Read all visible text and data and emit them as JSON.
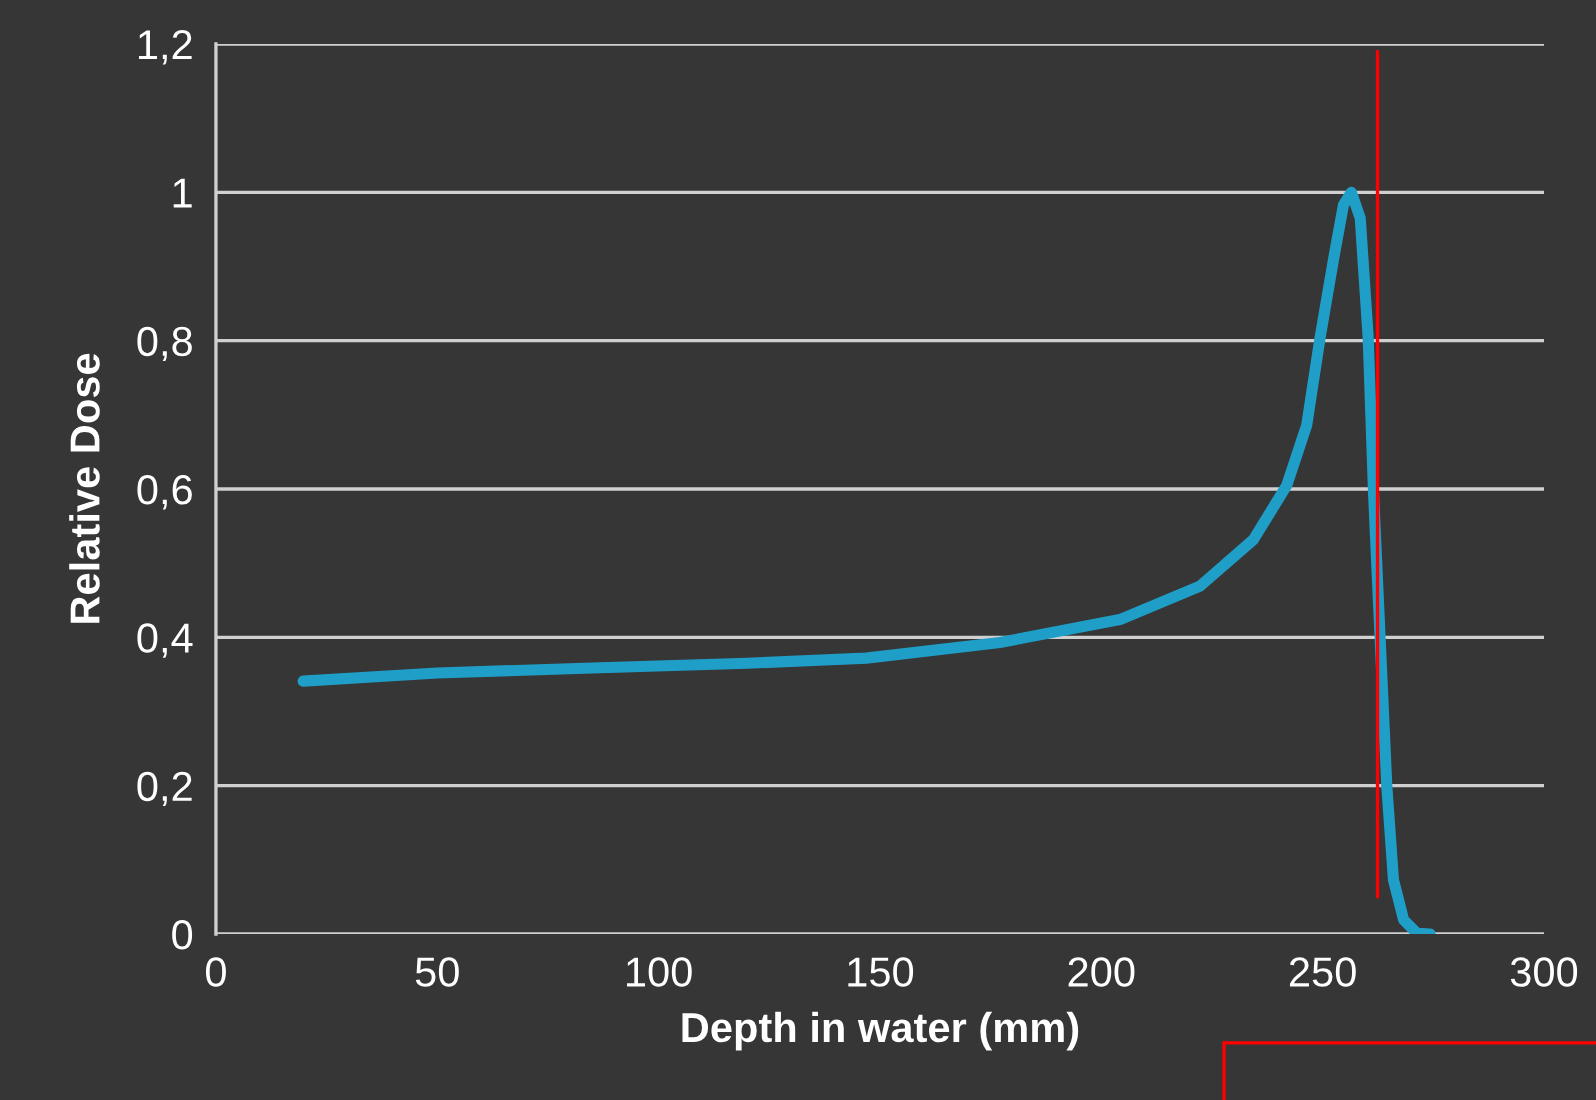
{
  "chart_data": {
    "type": "line",
    "xlabel": "Depth in water (mm)",
    "ylabel": "Relative Dose",
    "x": [
      19.7,
      50,
      86.8,
      120,
      146.9,
      177.1,
      204.2,
      222.3,
      234.4,
      241.9,
      246.4,
      249.4,
      252.5,
      254.7,
      256.5,
      258.5,
      260.3,
      261.5,
      263.0,
      264.5,
      266.0,
      268.3,
      271.3,
      274.3
    ],
    "series": [
      {
        "color": "#1f9fc8",
        "values": [
          0.341,
          0.352,
          0.359,
          0.365,
          0.372,
          0.393,
          0.424,
          0.469,
          0.532,
          0.605,
          0.686,
          0.803,
          0.911,
          0.983,
          1.0,
          0.965,
          0.803,
          0.595,
          0.397,
          0.199,
          0.073,
          0.019,
          0.001,
          0.0
        ]
      }
    ],
    "xlim": [
      0,
      300
    ],
    "xticks": [
      0,
      50,
      100,
      150,
      200,
      250,
      300
    ],
    "ylim": [
      0,
      1.2
    ],
    "yticks": [
      0,
      {
        "value": 0.2,
        "label": "0,2"
      },
      {
        "value": 0.4,
        "label": "0,4"
      },
      {
        "value": 0.6,
        "label": "0,6"
      },
      {
        "value": 0.8,
        "label": "0,8"
      },
      1,
      {
        "value": 1.2,
        "label": "1,2"
      }
    ],
    "ref_lines": [
      {
        "axis": "x",
        "value": 262.4,
        "color": "#ff0000"
      }
    ],
    "grid": "y",
    "marker": "none",
    "line_style": "solid"
  }
}
